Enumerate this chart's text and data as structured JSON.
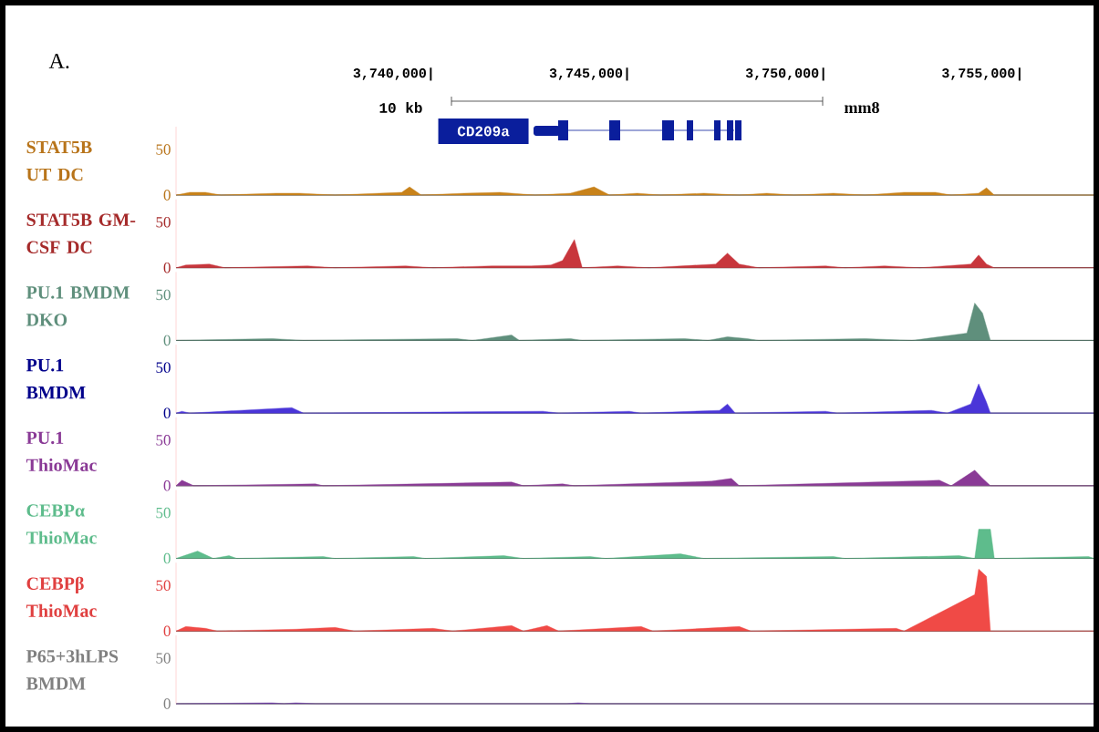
{
  "chart_data": [
    {
      "type": "area",
      "title": "A.",
      "ylabel": "STAT5B UT DC",
      "color": "#c8821a",
      "annotations": [
        "10 kb",
        "mm8",
        "CD209a"
      ],
      "xlim": [
        3734450,
        3757850
      ],
      "ylim": [
        0,
        75
      ],
      "yticks": [
        0,
        50
      ],
      "xticks": [
        {
          "value": 3740000,
          "label": "3,740,000|"
        },
        {
          "value": 3745000,
          "label": "3,745,000|"
        },
        {
          "value": 3750000,
          "label": "3,750,000|"
        },
        {
          "value": 3755000,
          "label": "3,755,000|"
        }
      ],
      "x": [
        3734450,
        3734800,
        3735200,
        3735600,
        3737000,
        3737600,
        3738500,
        3740200,
        3740400,
        3740700,
        3741800,
        3742700,
        3743600,
        3744500,
        3745100,
        3745500,
        3746200,
        3746800,
        3747900,
        3748800,
        3749500,
        3750200,
        3751200,
        3752000,
        3753000,
        3753800,
        3754200,
        3754900,
        3755100,
        3755300,
        3757850
      ],
      "values": [
        0,
        3,
        3,
        0,
        2,
        2,
        0,
        3,
        9,
        0,
        2,
        3,
        0,
        2,
        9,
        0,
        2,
        0,
        2,
        0,
        2,
        0,
        2,
        0,
        3,
        3,
        0,
        2,
        8,
        0,
        0
      ]
    },
    {
      "type": "area",
      "ylabel": "STAT5B GM-CSF DC",
      "color": "#c8363c",
      "tick_labels": "y",
      "xlim": [
        3734450,
        3757850
      ],
      "ylim": [
        0,
        75
      ],
      "yticks": [
        0,
        50
      ],
      "x": [
        3734450,
        3734700,
        3735300,
        3735700,
        3737800,
        3738500,
        3740300,
        3741000,
        3742500,
        3743500,
        3744000,
        3744300,
        3744600,
        3744800,
        3745700,
        3746500,
        3748200,
        3748500,
        3748800,
        3749300,
        3751000,
        3751500,
        3752500,
        3753400,
        3754700,
        3754900,
        3755100,
        3755300,
        3757850
      ],
      "values": [
        0,
        3,
        4,
        0,
        2,
        0,
        2,
        0,
        2,
        2,
        3,
        8,
        31,
        0,
        2,
        0,
        4,
        16,
        4,
        0,
        2,
        0,
        2,
        0,
        4,
        14,
        4,
        0,
        0
      ]
    },
    {
      "type": "area",
      "ylabel": "PU.1 BMDM DKO",
      "color": "#5f8f7c",
      "tick_labels": "y",
      "xlim": [
        3734450,
        3757850
      ],
      "ylim": [
        0,
        75
      ],
      "yticks": [
        0,
        50
      ],
      "x": [
        3734450,
        3736900,
        3737700,
        3741600,
        3742000,
        3743000,
        3743200,
        3744500,
        3744800,
        3747400,
        3748000,
        3748500,
        3749000,
        3749300,
        3752000,
        3753200,
        3754600,
        3754800,
        3755000,
        3755200,
        3757850
      ],
      "values": [
        0,
        2,
        0,
        2,
        0,
        6,
        0,
        2,
        0,
        2,
        0,
        4,
        2,
        0,
        2,
        0,
        8,
        41,
        30,
        0,
        0
      ]
    },
    {
      "type": "area",
      "ylabel": "PU.1 BMDM",
      "color": "#4a35d8",
      "tick_labels": "y",
      "xlim": [
        3734450,
        3757850
      ],
      "ylim": [
        0,
        75
      ],
      "yticks": [
        0,
        50
      ],
      "x": [
        3734450,
        3734600,
        3734800,
        3737400,
        3737700,
        3743800,
        3744200,
        3746000,
        3746300,
        3748300,
        3748500,
        3748700,
        3751000,
        3751300,
        3753700,
        3754100,
        3754700,
        3754900,
        3755100,
        3755200,
        3757850
      ],
      "values": [
        0,
        2,
        0,
        6,
        0,
        2,
        0,
        2,
        0,
        3,
        10,
        0,
        2,
        0,
        3,
        0,
        10,
        32,
        12,
        0,
        0
      ]
    },
    {
      "type": "area",
      "ylabel": "PU.1 ThioMac",
      "color": "#8a3a96",
      "tick_labels": "y",
      "xlim": [
        3734450,
        3757850
      ],
      "ylim": [
        0,
        75
      ],
      "yticks": [
        0,
        50
      ],
      "x": [
        3734450,
        3734600,
        3734900,
        3738000,
        3738200,
        3743000,
        3743300,
        3744300,
        3744600,
        3748100,
        3748600,
        3748800,
        3753900,
        3754200,
        3754800,
        3755000,
        3755200,
        3757850
      ],
      "values": [
        0,
        6,
        0,
        2,
        0,
        4,
        0,
        2,
        0,
        5,
        8,
        0,
        6,
        0,
        17,
        8,
        0,
        0
      ]
    },
    {
      "type": "area",
      "ylabel": "CEBPα ThioMac",
      "color": "#5ebc8c",
      "tick_labels": "y",
      "xlim": [
        3734450,
        3757850
      ],
      "ylim": [
        0,
        75
      ],
      "yticks": [
        0,
        50
      ],
      "x": [
        3734450,
        3735000,
        3735400,
        3735800,
        3736000,
        3738200,
        3738500,
        3740500,
        3740800,
        3742800,
        3743300,
        3745000,
        3745400,
        3747300,
        3747900,
        3751200,
        3751500,
        3754400,
        3754800,
        3754900,
        3755200,
        3755300,
        3757700,
        3757850
      ],
      "values": [
        0,
        8,
        0,
        3,
        0,
        2,
        0,
        2,
        0,
        3,
        0,
        2,
        0,
        5,
        0,
        2,
        0,
        3,
        0,
        32,
        32,
        0,
        2,
        0
      ]
    },
    {
      "type": "area",
      "ylabel": "CEBPβ ThioMac",
      "color": "#f04a46",
      "tick_labels": "y",
      "xlim": [
        3734450,
        3757850
      ],
      "ylim": [
        0,
        75
      ],
      "yticks": [
        0,
        50
      ],
      "x": [
        3734450,
        3734700,
        3735200,
        3735500,
        3737500,
        3738500,
        3739000,
        3741000,
        3741500,
        3743000,
        3743300,
        3743900,
        3744200,
        3746300,
        3746600,
        3748800,
        3749100,
        3752800,
        3753000,
        3754800,
        3754900,
        3755100,
        3755200,
        3757850
      ],
      "values": [
        0,
        5,
        3,
        0,
        2,
        4,
        0,
        3,
        0,
        6,
        0,
        6,
        0,
        5,
        0,
        5,
        0,
        3,
        0,
        40,
        68,
        60,
        0,
        0
      ]
    },
    {
      "type": "area",
      "ylabel": "P65+3hLPS BMDM",
      "color": "#6a3aa0",
      "tick_labels": "y",
      "xlim": [
        3734450,
        3757850
      ],
      "ylim": [
        0,
        75
      ],
      "yticks": [
        0,
        50
      ],
      "x": [
        3734450,
        3736900,
        3737200,
        3737500,
        3738000,
        3744400,
        3744700,
        3745000,
        3757850
      ],
      "values": [
        0,
        1,
        0,
        1,
        0,
        0,
        1,
        0,
        0
      ]
    }
  ]
}
